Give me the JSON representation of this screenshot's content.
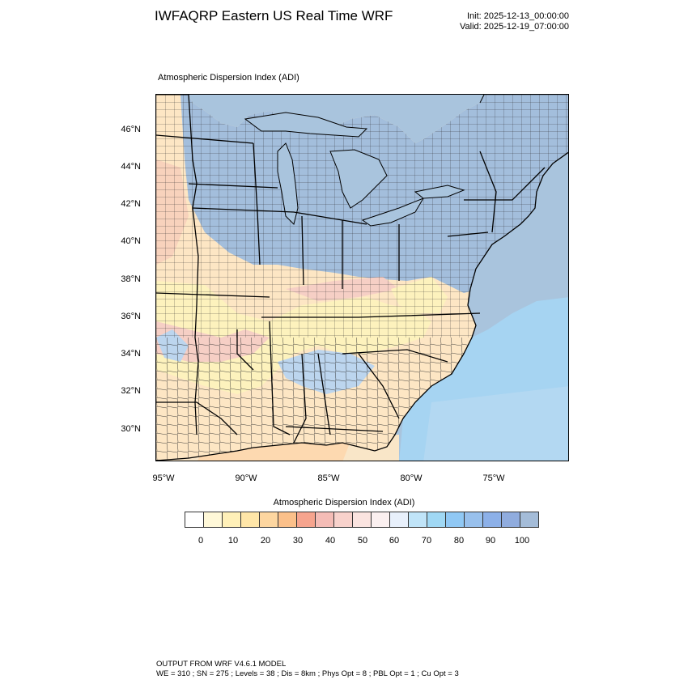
{
  "header": {
    "title": "IWFAQRP Eastern US Real Time WRF",
    "init": "Init: 2025-12-13_00:00:00",
    "valid": "Valid: 2025-12-19_07:00:00"
  },
  "map": {
    "title": "Atmospheric Dispersion Index   (ADI)",
    "lat_labels": [
      "46°N",
      "44°N",
      "42°N",
      "40°N",
      "38°N",
      "36°N",
      "34°N",
      "32°N",
      "30°N"
    ],
    "lon_labels": [
      "95°W",
      "90°W",
      "85°W",
      "80°W",
      "75°W"
    ],
    "colors": {
      "ocean": "#a9c4dd",
      "high_adi": "#a3bedc",
      "mid_low": "#fde6c4",
      "pink": "#f6cfc5",
      "yellow": "#fdf2bd",
      "light_blue": "#bcd5ee",
      "coastal_blue": "#8fd0f0"
    }
  },
  "colorbar": {
    "title": "Atmospheric Dispersion Index  (ADI)",
    "tick_labels": [
      "0",
      "10",
      "20",
      "30",
      "40",
      "50",
      "60",
      "70",
      "80",
      "90",
      "100"
    ],
    "swatches": [
      "#ffffff",
      "#fff8d8",
      "#fff0b8",
      "#ffe6a8",
      "#fdd6a0",
      "#fbc08a",
      "#f6a48e",
      "#f4bcb6",
      "#f8d2cc",
      "#fbe4e0",
      "#fbf0f0",
      "#e8f0fb",
      "#c0e4f8",
      "#a0d8f4",
      "#90c8f4",
      "#98c0ec",
      "#8cb0e8",
      "#90acde",
      "#a4bcd8"
    ]
  },
  "footer": {
    "line1": "OUTPUT FROM WRF V4.6.1 MODEL",
    "line2": "WE = 310 ; SN = 275 ; Levels = 38 ; Dis = 8km ; Phys Opt = 8 ; PBL Opt = 1 ; Cu Opt = 3"
  }
}
